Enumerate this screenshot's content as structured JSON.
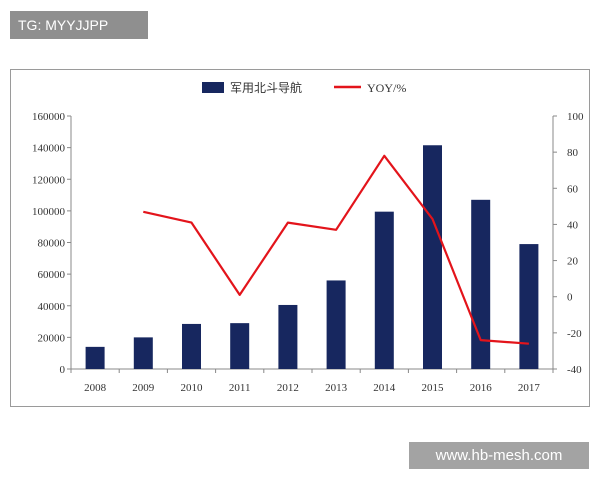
{
  "watermark_top": "TG: MYYJJPP",
  "watermark_bottom": "www.hb-mesh.com",
  "colors": {
    "bar": "#17275f",
    "line": "#e3141b",
    "axis": "#888888",
    "text": "#333333"
  },
  "chart_data": {
    "type": "bar",
    "title": "",
    "categories": [
      "2008",
      "2009",
      "2010",
      "2011",
      "2012",
      "2013",
      "2014",
      "2015",
      "2016",
      "2017"
    ],
    "series": [
      {
        "name": "军用北斗导航",
        "type": "bar",
        "axis": "left",
        "values": [
          14000,
          20000,
          28500,
          29000,
          40500,
          56000,
          99500,
          141500,
          107000,
          79000
        ]
      },
      {
        "name": "YOY/%",
        "type": "line",
        "axis": "right",
        "values": [
          null,
          47,
          41,
          1,
          41,
          37,
          78,
          43,
          -24,
          -26
        ]
      }
    ],
    "y_left": {
      "min": 0,
      "max": 160000,
      "ticks": [
        "0",
        "20000",
        "40000",
        "60000",
        "80000",
        "100000",
        "120000",
        "140000",
        "160000"
      ]
    },
    "y_right": {
      "min": -40,
      "max": 100,
      "ticks": [
        "-40",
        "-20",
        "0",
        "20",
        "40",
        "60",
        "80",
        "100"
      ]
    },
    "legend_position": "top-center",
    "grid": false
  }
}
